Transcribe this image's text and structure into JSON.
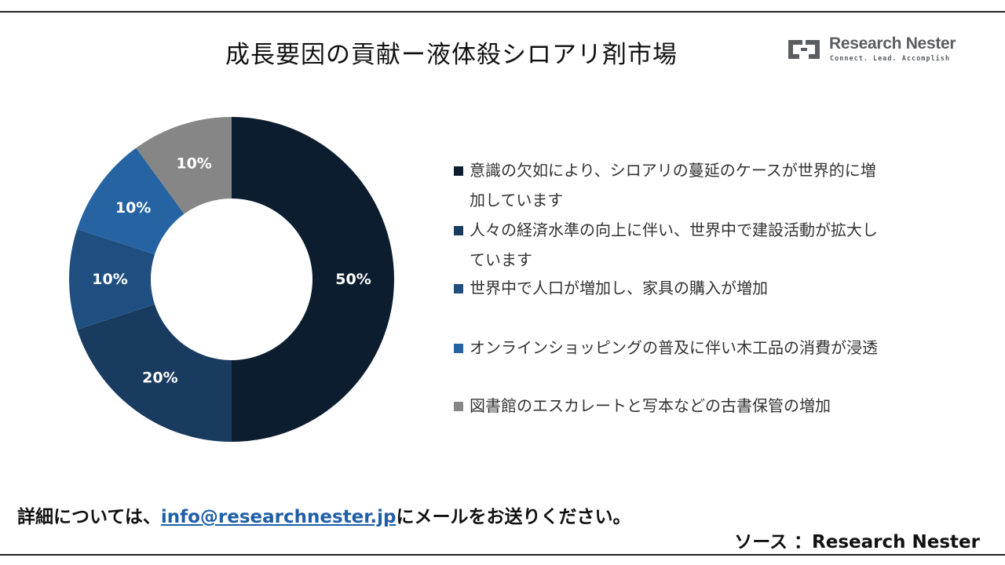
{
  "title": "成長要因の貢献ー液体殺シロアリ剤市場",
  "logo": {
    "name": "Research Nester",
    "tagline": "Connect. Lead. Accomplish"
  },
  "chart_data": {
    "type": "pie",
    "donut": true,
    "categories": [
      "意識の欠如により、シロアリの蔓延のケースが世界的に増加しています",
      "人々の経済水準の向上に伴い、世界中で建設活動が拡大しています",
      "世界中で人口が増加し、家具の購入が増加",
      "オンラインショッピングの普及に伴い木工品の消費が浸透",
      "図書館のエスカレートと写本などの古書保管の増加"
    ],
    "values": [
      50,
      20,
      10,
      10,
      10
    ],
    "value_labels": [
      "50%",
      "20%",
      "10%",
      "10%",
      "10%"
    ],
    "colors": [
      "#0d1d30",
      "#1a3b60",
      "#1f4f80",
      "#2563a3",
      "#868686"
    ],
    "legend_position": "right"
  },
  "footer": {
    "contact_prefix": "詳細については、",
    "email": "info@researchnester.jp",
    "contact_suffix": "にメールをお送りください。",
    "source": "ソース ：Research Nester"
  }
}
